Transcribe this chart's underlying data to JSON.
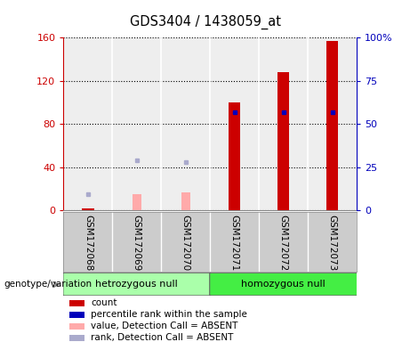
{
  "title": "GDS3404 / 1438059_at",
  "samples": [
    "GSM172068",
    "GSM172069",
    "GSM172070",
    "GSM172071",
    "GSM172072",
    "GSM172073"
  ],
  "count_values": [
    2,
    0,
    0,
    100,
    128,
    157
  ],
  "percentile_values": [
    null,
    null,
    null,
    57,
    57,
    57
  ],
  "absent_value_bars": [
    0,
    15,
    17,
    0,
    0,
    0
  ],
  "absent_rank_dots": [
    15,
    0,
    0,
    0,
    0,
    0
  ],
  "absent_rank_dots2": [
    0,
    46,
    45,
    0,
    0,
    0
  ],
  "ylim_left": [
    0,
    160
  ],
  "ylim_right": [
    0,
    100
  ],
  "yticks_left": [
    0,
    40,
    80,
    120,
    160
  ],
  "yticks_right": [
    0,
    25,
    50,
    75,
    100
  ],
  "ytick_labels_right": [
    "0",
    "25",
    "50",
    "75",
    "100%"
  ],
  "bar_color_count": "#cc0000",
  "bar_color_absent_value": "#ffaaaa",
  "dot_color_percentile": "#0000bb",
  "dot_color_absent_rank": "#aaaacc",
  "group_colors": {
    "hetrozygous null": "#aaffaa",
    "homozygous null": "#44ee44"
  },
  "group_list": [
    {
      "name": "hetrozygous null",
      "indices": [
        0,
        1,
        2
      ]
    },
    {
      "name": "homozygous null",
      "indices": [
        3,
        4,
        5
      ]
    }
  ],
  "legend_items": [
    {
      "label": "count",
      "color": "#cc0000"
    },
    {
      "label": "percentile rank within the sample",
      "color": "#0000bb"
    },
    {
      "label": "value, Detection Call = ABSENT",
      "color": "#ffaaaa"
    },
    {
      "label": "rank, Detection Call = ABSENT",
      "color": "#aaaacc"
    }
  ],
  "background_color": "#ffffff",
  "plot_bg_color": "#eeeeee",
  "bar_width": 0.35
}
